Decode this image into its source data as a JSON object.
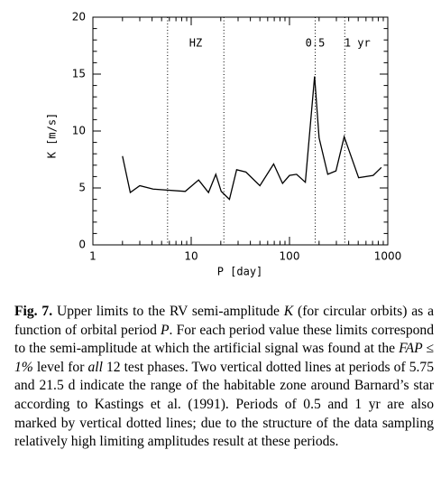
{
  "chart_data": {
    "type": "line",
    "xlabel": "P [day]",
    "ylabel": "K [m/s]",
    "x": [
      2,
      2.4,
      3,
      4.1,
      8.7,
      11.9,
      15,
      17.8,
      20.2,
      24.5,
      29,
      36,
      50,
      69,
      85,
      100,
      118,
      145,
      180,
      200,
      245,
      297,
      360,
      505,
      710,
      860
    ],
    "values": [
      7.8,
      4.6,
      5.2,
      4.9,
      4.7,
      5.7,
      4.6,
      6.2,
      4.7,
      4.0,
      6.6,
      6.4,
      5.2,
      7.1,
      5.4,
      6.1,
      6.2,
      5.5,
      14.8,
      9.4,
      6.2,
      6.5,
      9.5,
      5.9,
      6.1,
      6.8
    ],
    "color": "#000000",
    "xlim": [
      1,
      1000
    ],
    "xticks": [
      1,
      10,
      100,
      1000
    ],
    "xscale": "log",
    "ylim": [
      0,
      20
    ],
    "yticks": [
      0,
      5,
      10,
      15,
      20
    ],
    "vlines": [
      5.75,
      21.5,
      182.5,
      365
    ],
    "annotations": [
      "HZ",
      "0.5",
      "1 yr"
    ]
  },
  "caption": {
    "label": "Fig. 7.",
    "runs": [
      "Upper limits to the RV semi-amplitude ",
      "K",
      " (for circular orbits) as a function of orbital period ",
      "P",
      ". For each period value these limits correspond to the semi-amplitude at which the artificial signal was found at the ",
      "FAP ≤ 1%",
      " level for ",
      "all",
      " 12 test phases. Two vertical dotted lines at periods of 5.75 and 21.5 d indicate the range of the habitable zone around Barnard’s star according to Kastings et al. (1991). Periods of 0.5 and 1 yr are also marked by vertical dotted lines; due to the structure of the data sampling relatively high limiting amplitudes result at these periods."
    ]
  }
}
